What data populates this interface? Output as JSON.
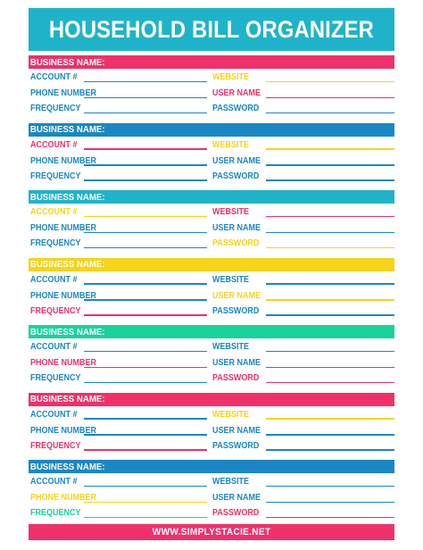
{
  "title": "HOUSEHOLD BILL ORGANIZER",
  "footer": "WWW.SIMPLYSTACIE.NET",
  "colors": {
    "pink": "#f0306a",
    "blue": "#1a87c4",
    "teal": "#1fb3c9",
    "yellow": "#f7d31a",
    "green": "#18d39a"
  },
  "blocks": [
    {
      "header": "BUSINESS NAME:",
      "header_color": "#f0306a",
      "rows": [
        {
          "left": "ACCOUNT #",
          "left_color": "#1a87c4",
          "right": "WEBSITE",
          "right_color": "#f7d31a"
        },
        {
          "left": "PHONE NUMBER",
          "left_color": "#1a87c4",
          "right": "USER NAME",
          "right_color": "#f0306a"
        },
        {
          "left": "FREQUENCY",
          "left_color": "#1a87c4",
          "right": "PASSWORD",
          "right_color": "#1a87c4"
        }
      ]
    },
    {
      "header": "BUSINESS NAME:",
      "header_color": "#1a87c4",
      "rows": [
        {
          "left": "ACCOUNT #",
          "left_color": "#f0306a",
          "right": "WEBSITE",
          "right_color": "#f7d31a"
        },
        {
          "left": "PHONE NUMBER",
          "left_color": "#1a87c4",
          "right": "USER NAME",
          "right_color": "#1a87c4"
        },
        {
          "left": "FREQUENCY",
          "left_color": "#1a87c4",
          "right": "PASSWORD",
          "right_color": "#1a87c4"
        }
      ]
    },
    {
      "header": "BUSINESS NAME:",
      "header_color": "#1fb3c9",
      "rows": [
        {
          "left": "ACCOUNT #",
          "left_color": "#f7d31a",
          "right": "WEBSITE",
          "right_color": "#f0306a"
        },
        {
          "left": "PHONE NUMBER",
          "left_color": "#1a87c4",
          "right": "USER NAME",
          "right_color": "#1a87c4"
        },
        {
          "left": "FREQUENCY",
          "left_color": "#1a87c4",
          "right": "PASSWORD",
          "right_color": "#f7d31a"
        }
      ]
    },
    {
      "header": "BUSINESS NAME:",
      "header_color": "#f7d31a",
      "rows": [
        {
          "left": "ACCOUNT #",
          "left_color": "#1a87c4",
          "right": "WEBSITE",
          "right_color": "#1a87c4"
        },
        {
          "left": "PHONE NUMBER",
          "left_color": "#1a87c4",
          "right": "USER NAME",
          "right_color": "#f7d31a"
        },
        {
          "left": "FREQUENCY",
          "left_color": "#f0306a",
          "right": "PASSWORD",
          "right_color": "#1a87c4"
        }
      ]
    },
    {
      "header": "BUSINESS NAME:",
      "header_color": "#18d39a",
      "rows": [
        {
          "left": "ACCOUNT #",
          "left_color": "#1a87c4",
          "right": "WEBSITE",
          "right_color": "#1a87c4"
        },
        {
          "left": "PHONE NUMBER",
          "left_color": "#f0306a",
          "right": "USER NAME",
          "right_color": "#1a87c4"
        },
        {
          "left": "FREQUENCY",
          "left_color": "#1a87c4",
          "right": "PASSWORD",
          "right_color": "#f0306a"
        }
      ]
    },
    {
      "header": "BUSINESS NAME:",
      "header_color": "#f0306a",
      "rows": [
        {
          "left": "ACCOUNT #",
          "left_color": "#1a87c4",
          "right": "WEBSITE",
          "right_color": "#f7d31a"
        },
        {
          "left": "PHONE NUMBER",
          "left_color": "#1a87c4",
          "right": "USER NAME",
          "right_color": "#1a87c4"
        },
        {
          "left": "FREQUENCY",
          "left_color": "#f0306a",
          "right": "PASSWORD",
          "right_color": "#1a87c4"
        }
      ]
    },
    {
      "header": "BUSINESS NAME:",
      "header_color": "#1a87c4",
      "rows": [
        {
          "left": "ACCOUNT #",
          "left_color": "#1a87c4",
          "right": "WEBSITE",
          "right_color": "#1a87c4"
        },
        {
          "left": "PHONE NUMBER",
          "left_color": "#f7d31a",
          "right": "USER NAME",
          "right_color": "#1a87c4"
        },
        {
          "left": "FREQUENCY",
          "left_color": "#18d39a",
          "right": "PASSWORD",
          "right_color": "#f0306a"
        }
      ]
    }
  ]
}
